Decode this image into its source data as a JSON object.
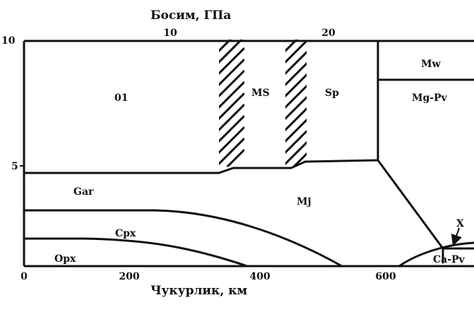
{
  "top_axis": {
    "title": "Босим, ГПа",
    "ticks": [
      "10",
      "20"
    ]
  },
  "bottom_axis": {
    "title": "Чукурлик, км",
    "ticks": [
      "0",
      "200",
      "400",
      "600"
    ]
  },
  "left_axis": {
    "ticks": [
      "10",
      "5"
    ]
  },
  "phases": {
    "olivine": "01",
    "ms": "MS",
    "sp": "Sp",
    "mw": "Mw",
    "mg_pv": "Mg-Pv",
    "gar": "Gar",
    "mj": "Mj",
    "cpx": "Cpx",
    "opx": "Opx",
    "ca_pv": "Ca-Pv",
    "x": "X"
  }
}
